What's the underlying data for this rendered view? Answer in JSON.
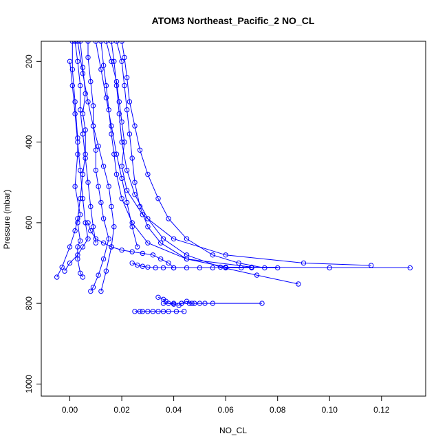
{
  "chart_data": {
    "type": "scatter",
    "title": "ATOM3 Northeast_Pacific_2 NO_CL",
    "xlabel": "NO_CL",
    "ylabel": "Pressure (mbar)",
    "xlim": [
      -0.011,
      0.137
    ],
    "ylim": [
      1030,
      150
    ],
    "y_inverted": true,
    "grid": false,
    "legend": "none",
    "x_ticks": [
      0.0,
      0.02,
      0.04,
      0.06,
      0.08,
      0.1,
      0.12
    ],
    "x_tick_labels": [
      "0.00",
      "0.02",
      "0.04",
      "0.06",
      "0.08",
      "0.10",
      "0.12"
    ],
    "y_ticks": [
      200,
      400,
      600,
      800,
      1000
    ],
    "y_tick_labels": [
      "200",
      "400",
      "600",
      "800",
      "1000"
    ],
    "marker": "open-circle",
    "colors": {
      "series": "#0000ff",
      "axes": "#000000"
    },
    "series": [
      {
        "x": [
          0.001,
          0.001,
          0.002,
          0.003,
          0.003,
          0.002,
          0.004,
          0.003,
          0.004,
          0.003,
          0.003,
          0.004,
          0.005
        ],
        "y": [
          150,
          220,
          300,
          390,
          430,
          510,
          580,
          600,
          645,
          660,
          690,
          725,
          735
        ]
      },
      {
        "x": [
          0.004,
          0.005,
          0.006,
          0.005,
          0.006,
          0.006,
          0.005,
          0.004,
          0.003,
          0.002,
          0.0,
          -0.003,
          -0.005
        ],
        "y": [
          150,
          215,
          280,
          330,
          370,
          430,
          480,
          540,
          590,
          620,
          660,
          710,
          735
        ]
      },
      {
        "x": [
          0.007,
          0.007,
          0.008,
          0.009,
          0.009,
          0.01,
          0.01,
          0.011,
          0.012,
          0.013,
          0.015,
          0.013,
          0.011,
          0.009,
          0.008
        ],
        "y": [
          150,
          190,
          250,
          310,
          360,
          420,
          470,
          510,
          550,
          590,
          640,
          690,
          730,
          760,
          770
        ]
      },
      {
        "x": [
          0.012,
          0.013,
          0.014,
          0.015,
          0.016,
          0.017,
          0.018,
          0.02,
          0.024,
          0.03,
          0.045,
          0.07,
          0.1,
          0.131
        ],
        "y": [
          150,
          210,
          260,
          320,
          380,
          430,
          480,
          540,
          600,
          650,
          690,
          710,
          712,
          712
        ]
      },
      {
        "x": [
          0.014,
          0.016,
          0.018,
          0.019,
          0.02,
          0.021,
          0.02,
          0.022,
          0.028,
          0.04,
          0.06,
          0.09,
          0.116
        ],
        "y": [
          150,
          200,
          250,
          300,
          350,
          400,
          460,
          520,
          580,
          640,
          680,
          700,
          706
        ]
      },
      {
        "x": [
          0.018,
          0.02,
          0.021,
          0.022,
          0.023,
          0.024,
          0.025,
          0.027,
          0.03,
          0.035,
          0.045,
          0.06,
          0.08
        ],
        "y": [
          150,
          200,
          260,
          320,
          380,
          440,
          500,
          560,
          610,
          650,
          690,
          710,
          712
        ]
      },
      {
        "x": [
          0.02,
          0.021,
          0.022,
          0.023,
          0.025,
          0.027,
          0.03,
          0.034,
          0.038,
          0.045,
          0.055,
          0.065,
          0.075
        ],
        "y": [
          150,
          190,
          240,
          300,
          360,
          420,
          480,
          540,
          590,
          640,
          680,
          700,
          712
        ]
      },
      {
        "x": [
          0.016,
          0.017,
          0.018,
          0.019,
          0.02,
          0.022,
          0.025,
          0.03,
          0.036,
          0.045,
          0.058,
          0.072,
          0.088
        ],
        "y": [
          150,
          200,
          260,
          330,
          400,
          470,
          530,
          590,
          640,
          680,
          710,
          730,
          752
        ]
      },
      {
        "x": [
          0.003,
          0.005,
          0.007,
          0.009,
          0.011,
          0.013,
          0.015,
          0.016,
          0.017,
          0.016,
          0.014,
          0.012
        ],
        "y": [
          150,
          230,
          300,
          360,
          410,
          460,
          510,
          560,
          610,
          660,
          720,
          770
        ]
      },
      {
        "x": [
          0.036,
          0.04,
          0.043,
          0.046,
          0.048,
          0.05,
          0.052,
          0.055,
          0.074
        ],
        "y": [
          800,
          800,
          800,
          800,
          800,
          800,
          800,
          800,
          800
        ]
      },
      {
        "x": [
          0.025,
          0.027,
          0.028,
          0.03,
          0.032,
          0.034,
          0.036,
          0.038,
          0.041,
          0.044
        ],
        "y": [
          820,
          820,
          820,
          820,
          820,
          820,
          820,
          820,
          820,
          820
        ]
      },
      {
        "x": [
          0.034,
          0.036,
          0.037,
          0.038,
          0.04,
          0.042,
          0.043,
          0.045,
          0.047
        ],
        "y": [
          785,
          790,
          795,
          800,
          802,
          805,
          800,
          795,
          800
        ]
      },
      {
        "x": [
          0.024,
          0.026,
          0.028,
          0.03,
          0.033,
          0.036,
          0.04,
          0.045,
          0.05,
          0.055,
          0.06,
          0.066,
          0.07
        ],
        "y": [
          700,
          705,
          708,
          710,
          712,
          712,
          712,
          712,
          712,
          712,
          712,
          712,
          712
        ]
      },
      {
        "x": [
          0.007,
          0.008,
          0.01,
          0.013,
          0.016,
          0.02,
          0.024,
          0.028,
          0.032,
          0.035,
          0.038,
          0.04
        ],
        "y": [
          600,
          620,
          640,
          650,
          660,
          668,
          672,
          676,
          680,
          690,
          700,
          712
        ]
      },
      {
        "x": [
          0.01,
          0.012,
          0.014,
          0.016,
          0.018,
          0.02,
          0.022,
          0.024,
          0.026
        ],
        "y": [
          150,
          220,
          290,
          360,
          430,
          490,
          550,
          610,
          660
        ]
      },
      {
        "x": [
          0.002,
          0.003,
          0.004,
          0.004,
          0.005,
          0.006,
          0.007,
          0.008,
          0.009,
          0.01
        ],
        "y": [
          150,
          200,
          260,
          320,
          380,
          440,
          500,
          560,
          610,
          650
        ]
      },
      {
        "x": [
          0.0,
          0.001,
          0.002,
          0.003,
          0.004,
          0.005,
          0.006,
          0.007,
          0.005,
          0.003,
          0.0,
          -0.002
        ],
        "y": [
          200,
          260,
          330,
          400,
          470,
          540,
          600,
          640,
          660,
          680,
          700,
          720
        ]
      }
    ]
  }
}
